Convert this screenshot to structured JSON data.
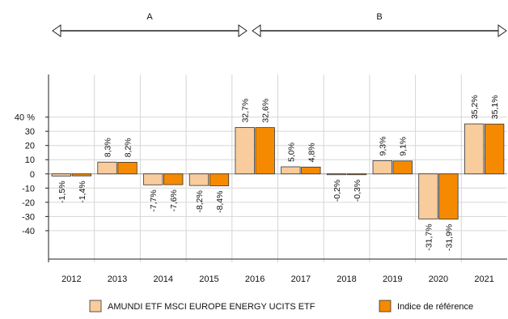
{
  "chart_data": {
    "type": "bar",
    "categories": [
      "2012",
      "2013",
      "2014",
      "2015",
      "2016",
      "2017",
      "2018",
      "2019",
      "2020",
      "2021"
    ],
    "series": [
      {
        "name": "AMUNDI ETF MSCI EUROPE ENERGY UCITS ETF",
        "values": [
          -1.5,
          8.3,
          -7.7,
          -8.2,
          32.7,
          5.0,
          -0.2,
          9.3,
          -31.7,
          35.2
        ],
        "labels": [
          "-1,5%",
          "8,3%",
          "-7,7%",
          "-8,2%",
          "32,7%",
          "5,0%",
          "-0,2%",
          "9,3%",
          "-31,7%",
          "35,2%"
        ],
        "color": "#f8cc9d"
      },
      {
        "name": "Indice de référence",
        "values": [
          -1.4,
          8.2,
          -7.6,
          -8.4,
          32.6,
          4.8,
          -0.3,
          9.1,
          -31.9,
          35.1
        ],
        "labels": [
          "-1,4%",
          "8,2%",
          "-7,6%",
          "-8,4%",
          "32,6%",
          "4,8%",
          "-0,3%",
          "9,1%",
          "-31,9%",
          "35,1%"
        ],
        "color": "#f58a00"
      }
    ],
    "yticks": [
      {
        "value": 40,
        "label": "40 %"
      },
      {
        "value": 30,
        "label": "30"
      },
      {
        "value": 20,
        "label": "20"
      },
      {
        "value": 10,
        "label": "10"
      },
      {
        "value": 0,
        "label": "0"
      },
      {
        "value": -10,
        "label": "-10"
      },
      {
        "value": -20,
        "label": "-20"
      },
      {
        "value": -30,
        "label": "-30"
      },
      {
        "value": -40,
        "label": "-40"
      }
    ],
    "ylim": [
      -60,
      70
    ],
    "periods": [
      {
        "label": "A",
        "start": "2012",
        "end": "2015"
      },
      {
        "label": "B",
        "start": "2016",
        "end": "2021"
      }
    ],
    "legend_position": "bottom"
  },
  "colors": {
    "fund": "#f8cc9d",
    "index": "#f58a00",
    "grid": "#d6d6d6",
    "axis": "#222222",
    "bar_border": "#333333"
  }
}
